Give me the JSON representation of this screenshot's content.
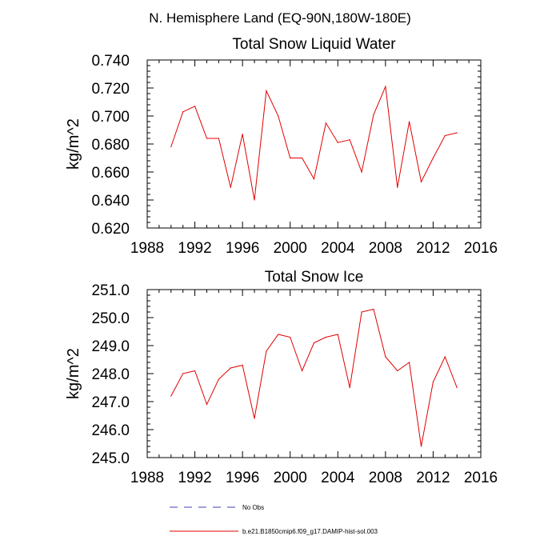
{
  "suptitle": "N. Hemisphere Land (EQ-90N,180W-180E)",
  "legend": {
    "obs_label": "No Obs",
    "model_label": "b.e21.B1850cmip6.f09_g17.DAMIP-hist-sol.003",
    "obs_color": "#4040c0",
    "model_color": "#e00000"
  },
  "chart_data": [
    {
      "type": "line",
      "title": "Total Snow Liquid Water",
      "ylabel": "kg/m^2",
      "xlabel": "",
      "xlim": [
        1988,
        2016
      ],
      "ylim": [
        0.62,
        0.74
      ],
      "xticks": [
        1988,
        1992,
        1996,
        2000,
        2004,
        2008,
        2012,
        2016
      ],
      "xtick_labels": [
        "1988",
        "1992",
        "1996",
        "2000",
        "2004",
        "2008",
        "2012",
        "2016"
      ],
      "yticks": [
        0.62,
        0.64,
        0.66,
        0.68,
        0.7,
        0.72,
        0.74
      ],
      "ytick_labels": [
        "0.620",
        "0.640",
        "0.660",
        "0.680",
        "0.700",
        "0.720",
        "0.740"
      ],
      "series": [
        {
          "color": "#e00000",
          "x": [
            1990,
            1991,
            1992,
            1993,
            1994,
            1995,
            1996,
            1997,
            1998,
            1999,
            2000,
            2001,
            2002,
            2003,
            2004,
            2005,
            2006,
            2007,
            2008,
            2009,
            2010,
            2011,
            2012,
            2013,
            2014
          ],
          "values": [
            0.678,
            0.703,
            0.707,
            0.684,
            0.684,
            0.649,
            0.687,
            0.64,
            0.718,
            0.7,
            0.67,
            0.67,
            0.655,
            0.695,
            0.681,
            0.683,
            0.66,
            0.701,
            0.721,
            0.649,
            0.696,
            0.653,
            0.67,
            0.686,
            0.688
          ]
        }
      ]
    },
    {
      "type": "line",
      "title": "Total Snow Ice",
      "ylabel": "kg/m^2",
      "xlabel": "",
      "xlim": [
        1988,
        2016
      ],
      "ylim": [
        245.0,
        251.0
      ],
      "xticks": [
        1988,
        1992,
        1996,
        2000,
        2004,
        2008,
        2012,
        2016
      ],
      "xtick_labels": [
        "1988",
        "1992",
        "1996",
        "2000",
        "2004",
        "2008",
        "2012",
        "2016"
      ],
      "yticks": [
        245,
        246,
        247,
        248,
        249,
        250,
        251
      ],
      "ytick_labels": [
        "245.0",
        "246.0",
        "247.0",
        "248.0",
        "249.0",
        "250.0",
        "251.0"
      ],
      "series": [
        {
          "color": "#e00000",
          "x": [
            1990,
            1991,
            1992,
            1993,
            1994,
            1995,
            1996,
            1997,
            1998,
            1999,
            2000,
            2001,
            2002,
            2003,
            2004,
            2005,
            2006,
            2007,
            2008,
            2009,
            2010,
            2011,
            2012,
            2013,
            2014
          ],
          "values": [
            247.2,
            248.0,
            248.1,
            246.9,
            247.8,
            248.2,
            248.3,
            246.4,
            248.8,
            249.4,
            249.3,
            248.1,
            249.1,
            249.3,
            249.4,
            247.5,
            250.2,
            250.3,
            248.6,
            248.1,
            248.4,
            245.4,
            247.7,
            248.6,
            247.5
          ]
        }
      ]
    }
  ]
}
